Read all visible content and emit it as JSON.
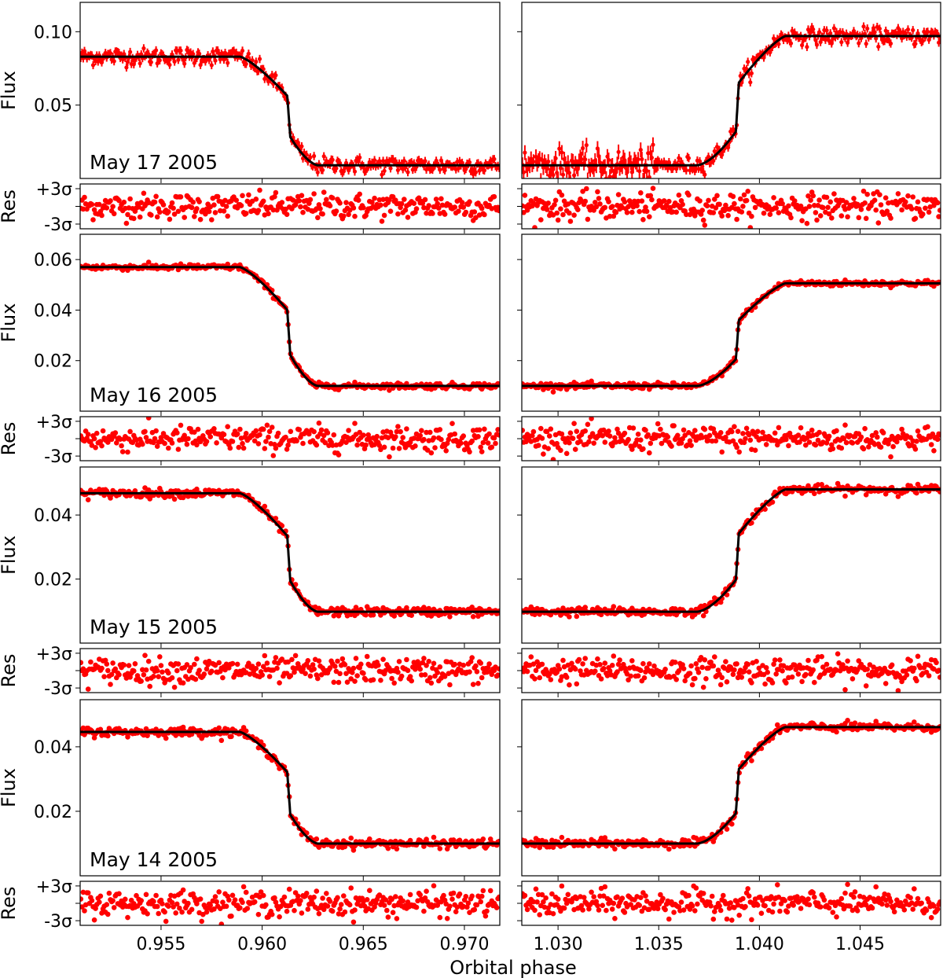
{
  "chart_data": {
    "type": "scatter",
    "xlabel": "Orbital phase",
    "flux_ylabel": "Flux",
    "res_ylabel": "Res",
    "res_ticks": [
      "+3σ",
      "-3σ"
    ],
    "res_ylim_sigma": [
      -3.8,
      3.8
    ],
    "columns": [
      {
        "xlim": [
          0.951,
          0.97175
        ],
        "xticks": [
          0.955,
          0.96,
          0.965,
          0.97
        ],
        "xtick_labels": [
          "0.955",
          "0.960",
          "0.965",
          "0.970"
        ],
        "direction": "ingress",
        "contact_start": 0.9589,
        "step": 0.96124,
        "contact_end": 0.96276
      },
      {
        "xlim": [
          1.0282,
          1.049
        ],
        "xticks": [
          1.03,
          1.035,
          1.04,
          1.045
        ],
        "xtick_labels": [
          "1.030",
          "1.035",
          "1.040",
          "1.045"
        ],
        "direction": "egress",
        "contact_start": 1.0369,
        "step": 1.03898,
        "contact_end": 1.0413
      }
    ],
    "rows": [
      {
        "date": "May 17 2005",
        "ylim": [
          0,
          0.12
        ],
        "yticks": [
          0.05,
          0.1
        ],
        "ytick_labels": [
          "0.05",
          "0.10"
        ],
        "top_flux": [
          0.083,
          0.097
        ],
        "bottom_flux": 0.009,
        "noise": 0.0028,
        "errorbars": true
      },
      {
        "date": "May 16 2005",
        "ylim": [
          0,
          0.07
        ],
        "yticks": [
          0.02,
          0.04,
          0.06
        ],
        "ytick_labels": [
          "0.02",
          "0.04",
          "0.06"
        ],
        "top_flux": [
          0.057,
          0.0506
        ],
        "bottom_flux": 0.01,
        "noise": 0.0006,
        "errorbars": false
      },
      {
        "date": "May 15 2005",
        "ylim": [
          0,
          0.055
        ],
        "yticks": [
          0.02,
          0.04
        ],
        "ytick_labels": [
          "0.02",
          "0.04"
        ],
        "top_flux": [
          0.0468,
          0.048
        ],
        "bottom_flux": 0.0098,
        "noise": 0.0007,
        "errorbars": false
      },
      {
        "date": "May 14 2005",
        "ylim": [
          0,
          0.0546
        ],
        "yticks": [
          0.02,
          0.04
        ],
        "ytick_labels": [
          "0.02",
          "0.04"
        ],
        "top_flux": [
          0.0446,
          0.0461
        ],
        "bottom_flux": 0.01,
        "noise": 0.0007,
        "errorbars": false
      }
    ],
    "shape": {
      "pre_step_level": 0.64,
      "post_step_level": 0.26
    },
    "points_per_panel": 340,
    "colors": {
      "data": "#ff0000",
      "model": "#000000"
    }
  }
}
